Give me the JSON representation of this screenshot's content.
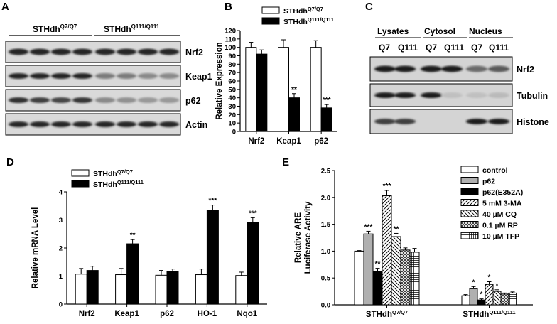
{
  "panels": {
    "A": "A",
    "B": "B",
    "C": "C",
    "D": "D",
    "E": "E"
  },
  "panel_a": {
    "group1": {
      "base": "STHdh",
      "sup": "Q7/Q7"
    },
    "group2": {
      "base": "STHdh",
      "sup": "Q111/Q111"
    },
    "blots": [
      "Nrf2",
      "Keap1",
      "p62",
      "Actin"
    ]
  },
  "panel_c": {
    "fractions": [
      "Lysates",
      "Cytosol",
      "Nucleus"
    ],
    "lanes": [
      "Q7",
      "Q111",
      "Q7",
      "Q111",
      "Q7",
      "Q111"
    ],
    "blots": [
      "Nrf2",
      "Tubulin",
      "Histone"
    ]
  },
  "chart_data": [
    {
      "id": "B",
      "type": "bar",
      "ylabel": "Relative Expression",
      "ylim": [
        0,
        120
      ],
      "yticks": [
        "0",
        "10",
        "20",
        "30",
        "40",
        "50",
        "60",
        "70",
        "80",
        "90",
        "100",
        "110",
        "120"
      ],
      "categories": [
        "Nrf2",
        "Keap1",
        "p62"
      ],
      "legend": [
        {
          "base": "STHdh",
          "sup": "Q7/Q7",
          "color": "#ffffff"
        },
        {
          "base": "STHdh",
          "sup": "Q111/Q111",
          "color": "#000000"
        }
      ],
      "series": [
        {
          "name": "STHdh Q7/Q7",
          "values": [
            100,
            100,
            100
          ],
          "errors": [
            6,
            9,
            8
          ],
          "color": "#ffffff"
        },
        {
          "name": "STHdh Q111/Q111",
          "values": [
            92,
            40,
            28
          ],
          "errors": [
            5,
            5,
            4
          ],
          "color": "#000000"
        }
      ],
      "annotations": [
        {
          "series": 1,
          "index": 1,
          "text": "**"
        },
        {
          "series": 1,
          "index": 2,
          "text": "***"
        }
      ]
    },
    {
      "id": "D",
      "type": "bar",
      "ylabel": "Relative mRNA Level",
      "ylim": [
        0,
        4
      ],
      "yticks": [
        "0",
        "1",
        "2",
        "3",
        "4"
      ],
      "categories": [
        "Nrf2",
        "Keap1",
        "p62",
        "HO-1",
        "Nqo1"
      ],
      "legend": [
        {
          "base": "STHdh",
          "sup": "Q7/Q7",
          "color": "#ffffff"
        },
        {
          "base": "STHdh",
          "sup": "Q111/Q111",
          "color": "#000000"
        }
      ],
      "series": [
        {
          "name": "STHdh Q7/Q7",
          "values": [
            1.07,
            1.05,
            1.03,
            1.05,
            1.02
          ],
          "errors": [
            0.2,
            0.22,
            0.17,
            0.2,
            0.12
          ],
          "color": "#ffffff"
        },
        {
          "name": "STHdh Q111/Q111",
          "values": [
            1.2,
            2.15,
            1.17,
            3.33,
            2.9
          ],
          "errors": [
            0.15,
            0.15,
            0.08,
            0.2,
            0.18
          ],
          "color": "#000000"
        }
      ],
      "annotations": [
        {
          "series": 1,
          "index": 1,
          "text": "**"
        },
        {
          "series": 1,
          "index": 3,
          "text": "***"
        },
        {
          "series": 1,
          "index": 4,
          "text": "***"
        }
      ]
    },
    {
      "id": "E",
      "type": "bar",
      "ylabel": [
        "Relative ARE",
        "Luciferase Activity"
      ],
      "ylim": [
        0,
        2.5
      ],
      "yticks": [
        "0.0",
        "0.5",
        "1.0",
        "1.5",
        "2.0",
        "2.5"
      ],
      "categories": [
        {
          "base": "STHdh",
          "sup": "Q7/Q7"
        },
        {
          "base": "STHdh",
          "sup": "Q111/Q111"
        }
      ],
      "series": [
        {
          "name": "control",
          "values": [
            1.0,
            0.17
          ],
          "errors": [
            0.01,
            0.02
          ],
          "fill": "white"
        },
        {
          "name": "p62",
          "values": [
            1.32,
            0.3
          ],
          "errors": [
            0.05,
            0.04
          ],
          "fill": "gray"
        },
        {
          "name": "p62(E352A)",
          "values": [
            0.62,
            0.09
          ],
          "errors": [
            0.06,
            0.02
          ],
          "fill": "black"
        },
        {
          "name": "5 mM 3-MA",
          "values": [
            2.03,
            0.38
          ],
          "errors": [
            0.1,
            0.05
          ],
          "fill": "hatch-fwd"
        },
        {
          "name": "40 µM CQ",
          "values": [
            1.27,
            0.25
          ],
          "errors": [
            0.06,
            0.03
          ],
          "fill": "hatch-back"
        },
        {
          "name": "0.1 µM RP",
          "values": [
            1.02,
            0.2
          ],
          "errors": [
            0.04,
            0.02
          ],
          "fill": "crosshatch"
        },
        {
          "name": "10 µM TFP",
          "values": [
            0.98,
            0.22
          ],
          "errors": [
            0.07,
            0.02
          ],
          "fill": "grid"
        }
      ],
      "annotations": [
        {
          "group": 0,
          "series": 1,
          "text": "***"
        },
        {
          "group": 0,
          "series": 2,
          "text": "**"
        },
        {
          "group": 0,
          "series": 3,
          "text": "***"
        },
        {
          "group": 0,
          "series": 4,
          "text": "**"
        },
        {
          "group": 1,
          "series": 1,
          "text": "*"
        },
        {
          "group": 1,
          "series": 2,
          "text": "*"
        },
        {
          "group": 1,
          "series": 3,
          "text": "*"
        },
        {
          "group": 1,
          "series": 4,
          "text": "*"
        }
      ]
    }
  ]
}
